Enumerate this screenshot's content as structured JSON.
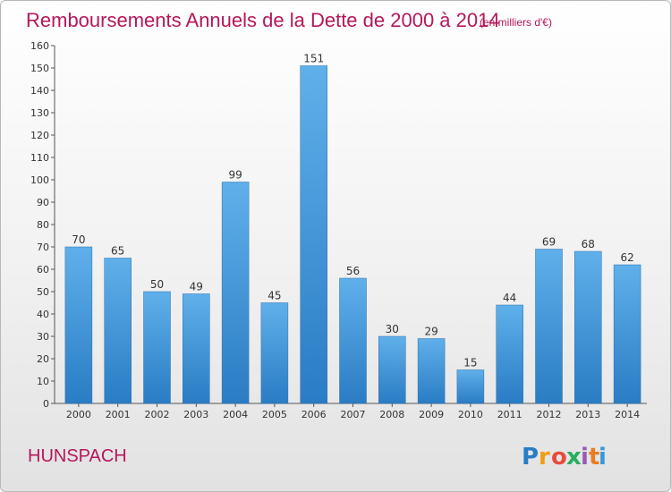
{
  "chart_data": {
    "type": "bar",
    "title": "Remboursements Annuels de la Dette de 2000 à 2014",
    "unit": "(en milliers d'€)",
    "categories": [
      "2000",
      "2001",
      "2002",
      "2003",
      "2004",
      "2005",
      "2006",
      "2007",
      "2008",
      "2009",
      "2010",
      "2011",
      "2012",
      "2013",
      "2014"
    ],
    "values": [
      70,
      65,
      50,
      49,
      99,
      45,
      151,
      56,
      30,
      29,
      15,
      44,
      69,
      68,
      62
    ],
    "ylim": [
      0,
      160
    ],
    "yticks": [
      0,
      10,
      20,
      30,
      40,
      50,
      60,
      70,
      80,
      90,
      100,
      110,
      120,
      130,
      140,
      150,
      160
    ],
    "grid": false,
    "bar_color": "#3d8fd6",
    "bar_color_light": "#5fb0ea"
  },
  "footer": {
    "location": "HUNSPACH",
    "logo": "Proxiti"
  },
  "colors": {
    "accent": "#b5175c"
  }
}
